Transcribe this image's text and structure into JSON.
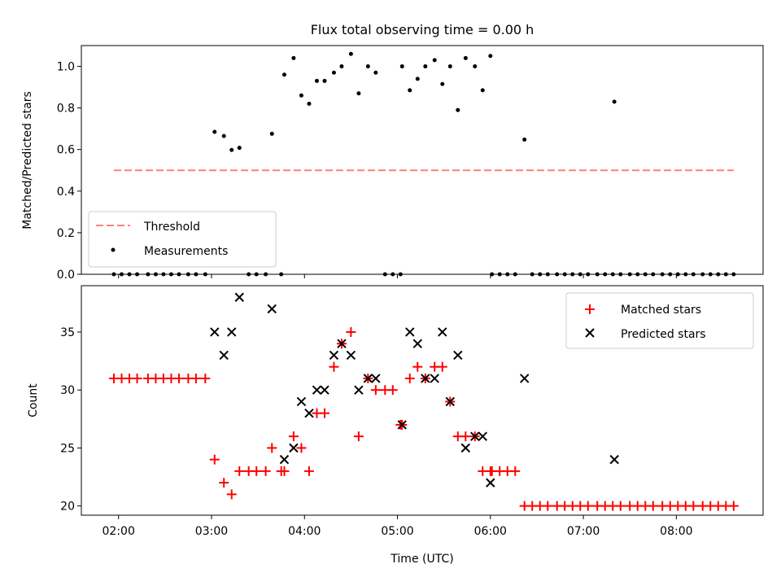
{
  "chart_data": [
    {
      "type": "scatter",
      "title": "Flux total observing time = 0.00 h",
      "ylabel": "Matched/Predicted stars",
      "xlabel": "",
      "xlim": [
        "01:36",
        "08:56"
      ],
      "ylim": [
        0.0,
        1.1
      ],
      "y_ticks": [
        "0.0",
        "0.2",
        "0.4",
        "0.6",
        "0.8",
        "1.0"
      ],
      "grid": false,
      "legend_position": "lower-left",
      "threshold": {
        "name": "Threshold",
        "y": 0.5,
        "x": [
          "01:57",
          "08:37"
        ],
        "color": "#ff7f7f",
        "style": "dashed"
      },
      "series": [
        {
          "name": "Measurements",
          "marker": "dot",
          "color": "#000000",
          "points": [
            [
              "01:57",
              0.0
            ],
            [
              "02:02",
              0.0
            ],
            [
              "02:07",
              0.0
            ],
            [
              "02:12",
              0.0
            ],
            [
              "02:19",
              0.0
            ],
            [
              "02:24",
              0.0
            ],
            [
              "02:29",
              0.0
            ],
            [
              "02:34",
              0.0
            ],
            [
              "02:39",
              0.0
            ],
            [
              "02:45",
              0.0
            ],
            [
              "02:50",
              0.0
            ],
            [
              "02:56",
              0.0
            ],
            [
              "03:02",
              0.685
            ],
            [
              "03:08",
              0.665
            ],
            [
              "03:13",
              0.598
            ],
            [
              "03:18",
              0.608
            ],
            [
              "03:24",
              0.0
            ],
            [
              "03:29",
              0.0
            ],
            [
              "03:35",
              0.0
            ],
            [
              "03:39",
              0.676
            ],
            [
              "03:45",
              0.0
            ],
            [
              "03:47",
              0.96
            ],
            [
              "03:53",
              1.04
            ],
            [
              "03:58",
              0.86
            ],
            [
              "04:03",
              0.82
            ],
            [
              "04:08",
              0.93
            ],
            [
              "04:13",
              0.93
            ],
            [
              "04:19",
              0.97
            ],
            [
              "04:24",
              1.0
            ],
            [
              "04:30",
              1.06
            ],
            [
              "04:35",
              0.87
            ],
            [
              "04:41",
              1.0
            ],
            [
              "04:46",
              0.97
            ],
            [
              "04:52",
              0.0
            ],
            [
              "04:57",
              0.0
            ],
            [
              "05:02",
              0.0
            ],
            [
              "05:03",
              1.0
            ],
            [
              "05:08",
              0.885
            ],
            [
              "05:13",
              0.94
            ],
            [
              "05:18",
              1.0
            ],
            [
              "05:24",
              1.03
            ],
            [
              "05:29",
              0.915
            ],
            [
              "05:34",
              1.0
            ],
            [
              "05:39",
              0.79
            ],
            [
              "05:44",
              1.04
            ],
            [
              "05:50",
              1.0
            ],
            [
              "05:55",
              0.885
            ],
            [
              "06:00",
              1.05
            ],
            [
              "06:01",
              0.0
            ],
            [
              "06:06",
              0.0
            ],
            [
              "06:11",
              0.0
            ],
            [
              "06:16",
              0.0
            ],
            [
              "06:22",
              0.648
            ],
            [
              "06:27",
              0.0
            ],
            [
              "06:32",
              0.0
            ],
            [
              "06:37",
              0.0
            ],
            [
              "06:43",
              0.0
            ],
            [
              "06:48",
              0.0
            ],
            [
              "06:53",
              0.0
            ],
            [
              "06:58",
              0.0
            ],
            [
              "07:03",
              0.0
            ],
            [
              "07:09",
              0.0
            ],
            [
              "07:14",
              0.0
            ],
            [
              "07:19",
              0.0
            ],
            [
              "07:20",
              0.83
            ],
            [
              "07:24",
              0.0
            ],
            [
              "07:30",
              0.0
            ],
            [
              "07:35",
              0.0
            ],
            [
              "07:40",
              0.0
            ],
            [
              "07:45",
              0.0
            ],
            [
              "07:51",
              0.0
            ],
            [
              "07:56",
              0.0
            ],
            [
              "08:01",
              0.0
            ],
            [
              "08:06",
              0.0
            ],
            [
              "08:11",
              0.0
            ],
            [
              "08:17",
              0.0
            ],
            [
              "08:22",
              0.0
            ],
            [
              "08:27",
              0.0
            ],
            [
              "08:32",
              0.0
            ],
            [
              "08:37",
              0.0
            ]
          ]
        }
      ]
    },
    {
      "type": "scatter",
      "title": "",
      "ylabel": "Count",
      "xlabel": "Time (UTC)",
      "xlim": [
        "01:36",
        "08:56"
      ],
      "ylim": [
        19.2,
        39.0
      ],
      "y_ticks": [
        "20",
        "25",
        "30",
        "35"
      ],
      "x_ticks": [
        "02:00",
        "03:00",
        "04:00",
        "05:00",
        "06:00",
        "07:00",
        "08:00"
      ],
      "grid": false,
      "legend_position": "upper-right",
      "series": [
        {
          "name": "Matched stars",
          "marker": "plus",
          "color": "#ff0000",
          "points": [
            [
              "01:57",
              31
            ],
            [
              "02:02",
              31
            ],
            [
              "02:07",
              31
            ],
            [
              "02:12",
              31
            ],
            [
              "02:19",
              31
            ],
            [
              "02:24",
              31
            ],
            [
              "02:29",
              31
            ],
            [
              "02:34",
              31
            ],
            [
              "02:39",
              31
            ],
            [
              "02:45",
              31
            ],
            [
              "02:50",
              31
            ],
            [
              "02:56",
              31
            ],
            [
              "03:02",
              24
            ],
            [
              "03:08",
              22
            ],
            [
              "03:13",
              21
            ],
            [
              "03:18",
              23
            ],
            [
              "03:24",
              23
            ],
            [
              "03:29",
              23
            ],
            [
              "03:35",
              23
            ],
            [
              "03:39",
              25
            ],
            [
              "03:45",
              23
            ],
            [
              "03:47",
              23
            ],
            [
              "03:53",
              26
            ],
            [
              "03:58",
              25
            ],
            [
              "04:03",
              23
            ],
            [
              "04:08",
              28
            ],
            [
              "04:13",
              28
            ],
            [
              "04:19",
              32
            ],
            [
              "04:24",
              34
            ],
            [
              "04:30",
              35
            ],
            [
              "04:35",
              26
            ],
            [
              "04:41",
              31
            ],
            [
              "04:46",
              30
            ],
            [
              "04:52",
              30
            ],
            [
              "04:57",
              30
            ],
            [
              "05:02",
              27
            ],
            [
              "05:03",
              27
            ],
            [
              "05:08",
              31
            ],
            [
              "05:13",
              32
            ],
            [
              "05:18",
              31
            ],
            [
              "05:24",
              32
            ],
            [
              "05:29",
              32
            ],
            [
              "05:34",
              29
            ],
            [
              "05:39",
              26
            ],
            [
              "05:44",
              26
            ],
            [
              "05:50",
              26
            ],
            [
              "05:55",
              23
            ],
            [
              "06:00",
              23
            ],
            [
              "06:01",
              23
            ],
            [
              "06:06",
              23
            ],
            [
              "06:11",
              23
            ],
            [
              "06:16",
              23
            ],
            [
              "06:22",
              20
            ],
            [
              "06:27",
              20
            ],
            [
              "06:32",
              20
            ],
            [
              "06:37",
              20
            ],
            [
              "06:43",
              20
            ],
            [
              "06:48",
              20
            ],
            [
              "06:53",
              20
            ],
            [
              "06:58",
              20
            ],
            [
              "07:03",
              20
            ],
            [
              "07:09",
              20
            ],
            [
              "07:14",
              20
            ],
            [
              "07:19",
              20
            ],
            [
              "07:24",
              20
            ],
            [
              "07:30",
              20
            ],
            [
              "07:35",
              20
            ],
            [
              "07:40",
              20
            ],
            [
              "07:45",
              20
            ],
            [
              "07:51",
              20
            ],
            [
              "07:56",
              20
            ],
            [
              "08:01",
              20
            ],
            [
              "08:06",
              20
            ],
            [
              "08:11",
              20
            ],
            [
              "08:17",
              20
            ],
            [
              "08:22",
              20
            ],
            [
              "08:27",
              20
            ],
            [
              "08:32",
              20
            ],
            [
              "08:37",
              20
            ]
          ]
        },
        {
          "name": "Predicted stars",
          "marker": "x",
          "color": "#000000",
          "points": [
            [
              "03:02",
              35
            ],
            [
              "03:08",
              33
            ],
            [
              "03:13",
              35
            ],
            [
              "03:18",
              38
            ],
            [
              "03:39",
              37
            ],
            [
              "03:47",
              24
            ],
            [
              "03:53",
              25
            ],
            [
              "03:58",
              29
            ],
            [
              "04:03",
              28
            ],
            [
              "04:08",
              30
            ],
            [
              "04:13",
              30
            ],
            [
              "04:19",
              33
            ],
            [
              "04:24",
              34
            ],
            [
              "04:30",
              33
            ],
            [
              "04:35",
              30
            ],
            [
              "04:41",
              31
            ],
            [
              "04:46",
              31
            ],
            [
              "05:03",
              27
            ],
            [
              "05:08",
              35
            ],
            [
              "05:13",
              34
            ],
            [
              "05:18",
              31
            ],
            [
              "05:24",
              31
            ],
            [
              "05:29",
              35
            ],
            [
              "05:34",
              29
            ],
            [
              "05:39",
              33
            ],
            [
              "05:44",
              25
            ],
            [
              "05:50",
              26
            ],
            [
              "05:55",
              26
            ],
            [
              "06:00",
              22
            ],
            [
              "06:22",
              31
            ],
            [
              "07:20",
              24
            ]
          ]
        }
      ]
    }
  ]
}
